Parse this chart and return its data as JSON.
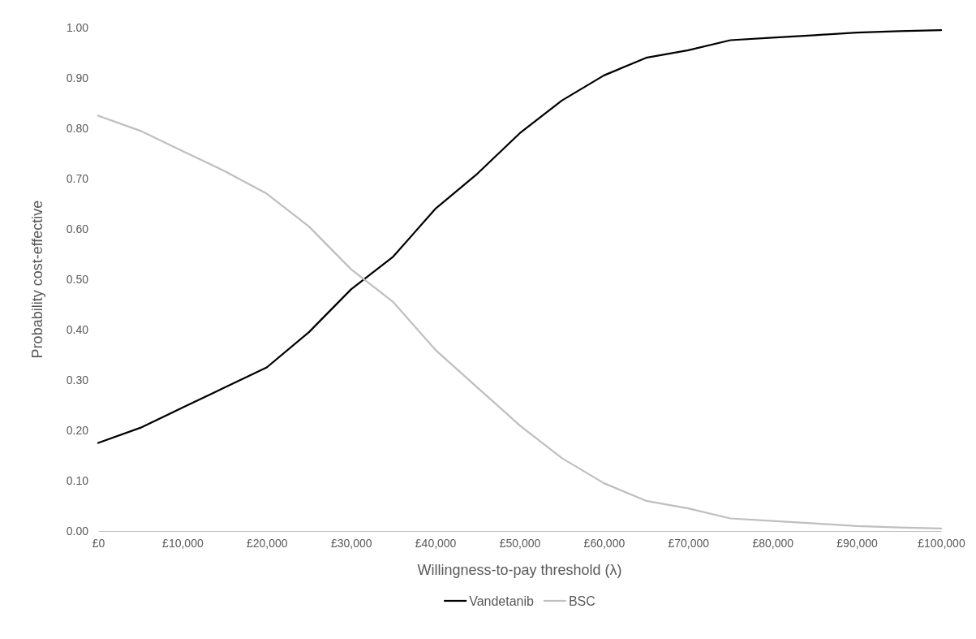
{
  "chart_data": {
    "type": "line",
    "xlabel": "Willingness-to-pay threshold (λ)",
    "ylabel": "Probability cost-effective",
    "x": [
      0,
      5000,
      10000,
      15000,
      20000,
      25000,
      30000,
      35000,
      40000,
      45000,
      50000,
      55000,
      60000,
      65000,
      70000,
      75000,
      80000,
      85000,
      90000,
      95000,
      100000
    ],
    "series": [
      {
        "name": "Vandetanib",
        "color": "#000000",
        "values": [
          0.175,
          0.205,
          0.245,
          0.285,
          0.325,
          0.395,
          0.48,
          0.545,
          0.64,
          0.71,
          0.79,
          0.855,
          0.905,
          0.94,
          0.955,
          0.975,
          0.98,
          0.985,
          0.99,
          0.993,
          0.995
        ]
      },
      {
        "name": "BSC",
        "color": "#bfbfbf",
        "values": [
          0.825,
          0.795,
          0.755,
          0.715,
          0.67,
          0.605,
          0.52,
          0.455,
          0.36,
          0.285,
          0.21,
          0.145,
          0.095,
          0.06,
          0.045,
          0.025,
          0.02,
          0.015,
          0.01,
          0.007,
          0.005
        ]
      }
    ],
    "xlim": [
      0,
      100000
    ],
    "xticks": [
      {
        "value": 0,
        "label": "£0"
      },
      {
        "value": 10000,
        "label": "£10,000"
      },
      {
        "value": 20000,
        "label": "£20,000"
      },
      {
        "value": 30000,
        "label": "£30,000"
      },
      {
        "value": 40000,
        "label": "£40,000"
      },
      {
        "value": 50000,
        "label": "£50,000"
      },
      {
        "value": 60000,
        "label": "£60,000"
      },
      {
        "value": 70000,
        "label": "£70,000"
      },
      {
        "value": 80000,
        "label": "£80,000"
      },
      {
        "value": 90000,
        "label": "£90,000"
      },
      {
        "value": 100000,
        "label": "£100,000"
      }
    ],
    "ylim": [
      0,
      1
    ],
    "yticks": [
      {
        "value": 0,
        "label": "0.00"
      },
      {
        "value": 0.1,
        "label": "0.10"
      },
      {
        "value": 0.2,
        "label": "0.20"
      },
      {
        "value": 0.3,
        "label": "0.30"
      },
      {
        "value": 0.4,
        "label": "0.40"
      },
      {
        "value": 0.5,
        "label": "0.50"
      },
      {
        "value": 0.6,
        "label": "0.60"
      },
      {
        "value": 0.7,
        "label": "0.70"
      },
      {
        "value": 0.8,
        "label": "0.80"
      },
      {
        "value": 0.9,
        "label": "0.90"
      },
      {
        "value": 1,
        "label": "1.00"
      }
    ],
    "grid": false,
    "legend": "bottom",
    "marker": "none",
    "line_style": "solid"
  }
}
